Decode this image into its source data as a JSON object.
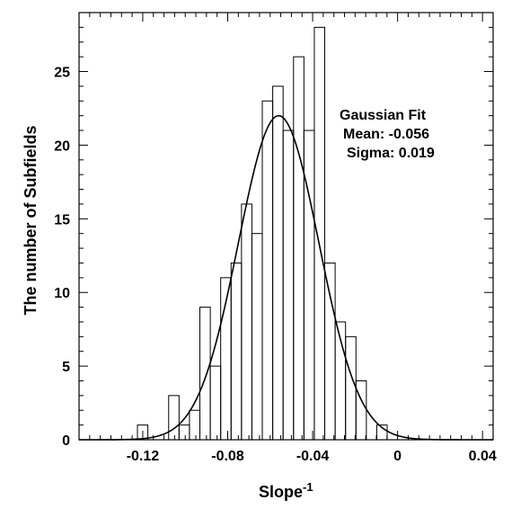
{
  "chart_data": {
    "type": "histogram",
    "xlabel": "Slope",
    "xlabel_superscript": "-1",
    "ylabel": "The number of Subfields",
    "xlim": [
      -0.15,
      0.045
    ],
    "ylim": [
      0,
      29
    ],
    "x_ticks": [
      -0.12,
      -0.08,
      -0.04,
      0,
      0.04
    ],
    "x_tick_labels": [
      "-0.12",
      "-0.08",
      "-0.04",
      "0",
      "0.04"
    ],
    "y_ticks": [
      0,
      5,
      10,
      15,
      20,
      25
    ],
    "y_tick_labels": [
      "0",
      "5",
      "10",
      "15",
      "20",
      "25"
    ],
    "bin_width": 0.0049,
    "bins": [
      {
        "x0": -0.1225,
        "count": 1
      },
      {
        "x0": -0.1176,
        "count": 0
      },
      {
        "x0": -0.1127,
        "count": 0
      },
      {
        "x0": -0.1078,
        "count": 3
      },
      {
        "x0": -0.1029,
        "count": 1
      },
      {
        "x0": -0.098,
        "count": 2
      },
      {
        "x0": -0.0931,
        "count": 9
      },
      {
        "x0": -0.0882,
        "count": 5
      },
      {
        "x0": -0.0833,
        "count": 11
      },
      {
        "x0": -0.0784,
        "count": 12
      },
      {
        "x0": -0.0735,
        "count": 16
      },
      {
        "x0": -0.0686,
        "count": 14
      },
      {
        "x0": -0.0637,
        "count": 23
      },
      {
        "x0": -0.0588,
        "count": 24
      },
      {
        "x0": -0.0539,
        "count": 21
      },
      {
        "x0": -0.049,
        "count": 26
      },
      {
        "x0": -0.0441,
        "count": 21
      },
      {
        "x0": -0.0392,
        "count": 28
      },
      {
        "x0": -0.0343,
        "count": 12
      },
      {
        "x0": -0.0294,
        "count": 8
      },
      {
        "x0": -0.0245,
        "count": 7
      },
      {
        "x0": -0.0196,
        "count": 4
      },
      {
        "x0": -0.0147,
        "count": 0
      },
      {
        "x0": -0.0098,
        "count": 1
      }
    ],
    "fit": {
      "type": "gaussian",
      "mean": -0.056,
      "sigma": 0.019,
      "peak": 22
    },
    "annotation": {
      "title": "Gaussian Fit",
      "mean_text": "Mean: -0.056",
      "sigma_text": "Sigma: 0.019"
    }
  }
}
